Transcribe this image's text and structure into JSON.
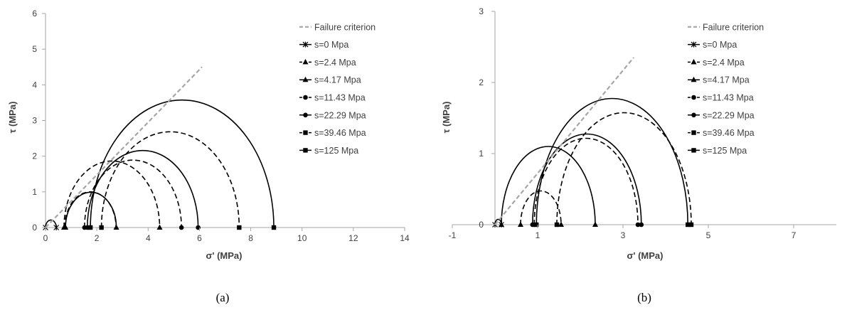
{
  "chart_data": [
    {
      "type": "line",
      "caption": "(a)",
      "xlabel": "σ' (MPa)",
      "ylabel": "τ  (MPa)",
      "xlim": [
        0,
        14
      ],
      "ylim": [
        0,
        6
      ],
      "xticks": [
        0,
        2,
        4,
        6,
        8,
        10,
        12,
        14
      ],
      "yticks": [
        0,
        1,
        2,
        3,
        4,
        5,
        6
      ],
      "grid": false,
      "legend_position": "right",
      "failure_criterion": {
        "name": "Failure criterion",
        "x": [
          0,
          6.1
        ],
        "y": [
          0,
          4.5
        ]
      },
      "series": [
        {
          "name": "s=0 Mpa",
          "marker": "x",
          "dash": "solid",
          "sigma3": 0.0,
          "sigma1": 0.42
        },
        {
          "name": "s=2.4 Mpa",
          "marker": "triangle",
          "dash": "dashed",
          "sigma3": 0.72,
          "sigma1": 4.45
        },
        {
          "name": "s=4.17 Mpa",
          "marker": "triangle",
          "dash": "solid",
          "sigma3": 0.78,
          "sigma1": 2.76
        },
        {
          "name": "s=11.43 Mpa",
          "marker": "circle",
          "dash": "dashed",
          "sigma3": 1.52,
          "sigma1": 5.3
        },
        {
          "name": "s=22.29 Mpa",
          "marker": "circle",
          "dash": "solid",
          "sigma3": 1.63,
          "sigma1": 5.95
        },
        {
          "name": "s=39.46 Mpa",
          "marker": "square",
          "dash": "dashed",
          "sigma3": 2.18,
          "sigma1": 7.55
        },
        {
          "name": "s=125 Mpa",
          "marker": "square",
          "dash": "solid",
          "sigma3": 1.75,
          "sigma1": 8.9
        }
      ],
      "extra_circles": [
        {
          "dash": "dashed",
          "sigma3": 0.75,
          "sigma1": 2.75
        }
      ]
    },
    {
      "type": "line",
      "caption": "(b)",
      "xlabel": "σ' (MPa)",
      "ylabel": "τ  (MPa)",
      "xlim": [
        -1,
        8
      ],
      "ylim": [
        0,
        3
      ],
      "xticks": [
        -1,
        1,
        3,
        5,
        7
      ],
      "yticks": [
        0,
        1,
        2,
        3
      ],
      "grid": false,
      "legend_position": "right",
      "failure_criterion": {
        "name": "Failure criterion",
        "x": [
          0,
          3.25
        ],
        "y": [
          0,
          2.35
        ]
      },
      "series": [
        {
          "name": "s=0 Mpa",
          "marker": "x",
          "dash": "solid",
          "sigma3": 0.0,
          "sigma1": 0.15
        },
        {
          "name": "s=2.4 Mpa",
          "marker": "triangle",
          "dash": "dashed",
          "sigma3": 0.6,
          "sigma1": 1.55
        },
        {
          "name": "s=4.17 Mpa",
          "marker": "triangle",
          "dash": "solid",
          "sigma3": 0.15,
          "sigma1": 2.35
        },
        {
          "name": "s=11.43 Mpa",
          "marker": "circle",
          "dash": "dashed",
          "sigma3": 0.92,
          "sigma1": 3.35
        },
        {
          "name": "s=22.29 Mpa",
          "marker": "circle",
          "dash": "solid",
          "sigma3": 0.88,
          "sigma1": 3.43
        },
        {
          "name": "s=39.46 Mpa",
          "marker": "square",
          "dash": "dashed",
          "sigma3": 1.45,
          "sigma1": 4.6
        },
        {
          "name": "s=125 Mpa",
          "marker": "square",
          "dash": "solid",
          "sigma3": 0.97,
          "sigma1": 4.52
        }
      ]
    }
  ],
  "colors": {
    "axis": "#a6a6a6",
    "curve": "#000000",
    "criterion": "#a6a6a6",
    "text": "#404040"
  }
}
